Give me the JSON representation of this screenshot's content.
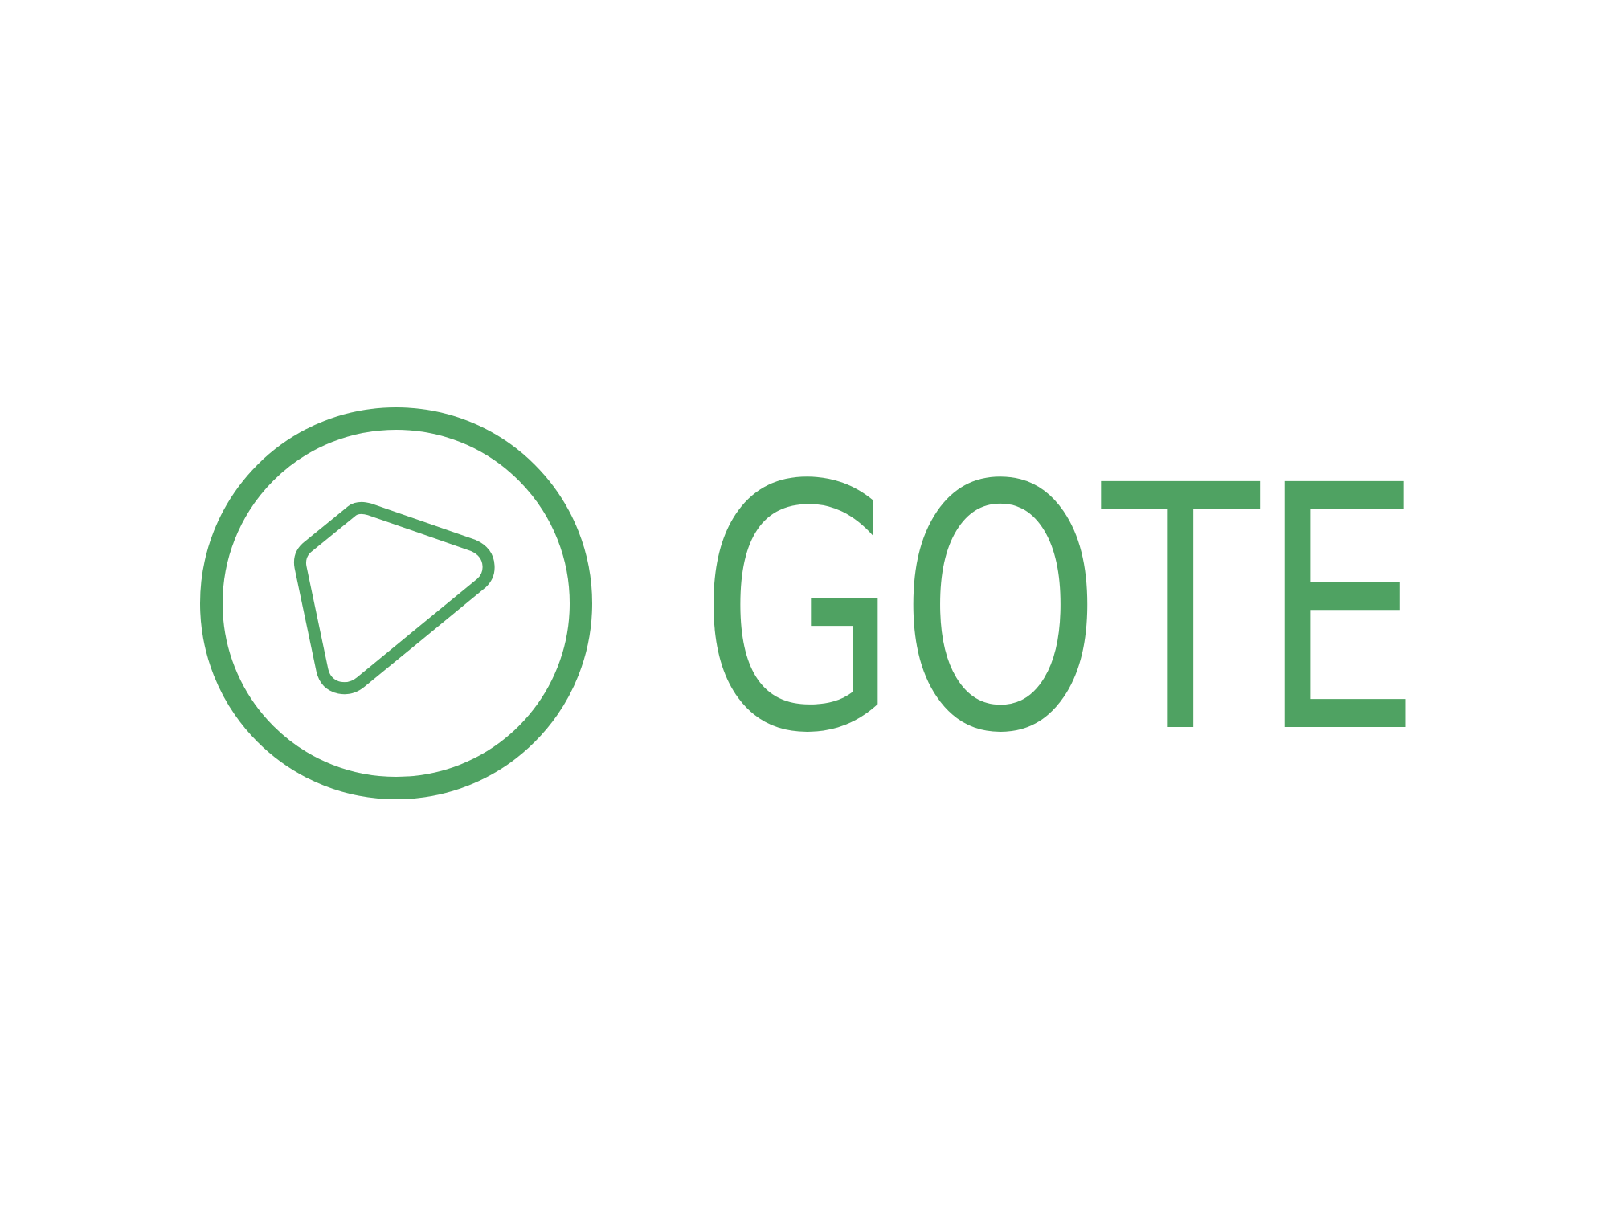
{
  "brand": {
    "name": "GOTE",
    "letters": [
      "G",
      "O",
      "T",
      "E"
    ],
    "color": "#4fa262",
    "background": "#ffffff",
    "icon_name": "rounded-triangle-in-circle-icon"
  }
}
